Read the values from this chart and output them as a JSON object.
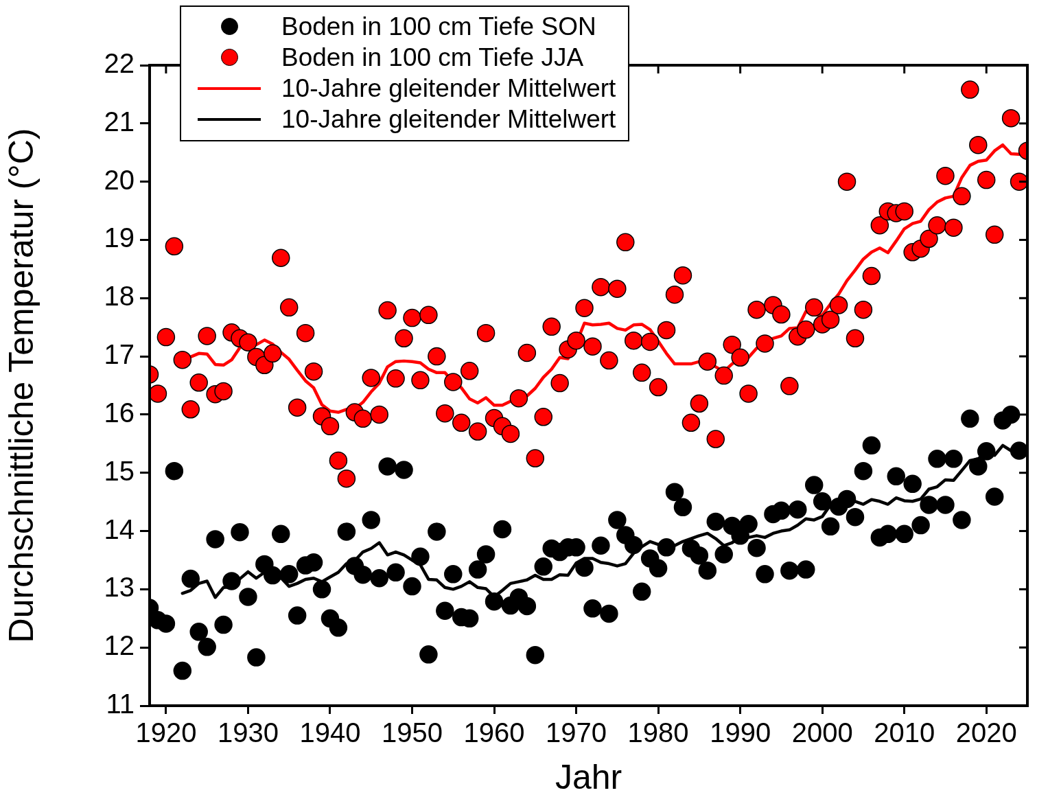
{
  "chart_data": {
    "type": "scatter",
    "xlabel": "Jahr",
    "ylabel": "Durchschnittliche Temperatur (°C)",
    "x": [
      1918,
      1919,
      1920,
      1921,
      1922,
      1923,
      1924,
      1925,
      1926,
      1927,
      1928,
      1929,
      1930,
      1931,
      1932,
      1933,
      1934,
      1935,
      1936,
      1937,
      1938,
      1939,
      1940,
      1941,
      1942,
      1943,
      1944,
      1945,
      1946,
      1947,
      1948,
      1949,
      1950,
      1951,
      1952,
      1953,
      1954,
      1955,
      1956,
      1957,
      1958,
      1959,
      1960,
      1961,
      1962,
      1963,
      1964,
      1965,
      1966,
      1967,
      1968,
      1969,
      1970,
      1971,
      1972,
      1973,
      1974,
      1975,
      1976,
      1977,
      1978,
      1979,
      1980,
      1981,
      1982,
      1983,
      1984,
      1985,
      1986,
      1987,
      1988,
      1989,
      1990,
      1991,
      1992,
      1993,
      1994,
      1995,
      1996,
      1997,
      1998,
      1999,
      2000,
      2001,
      2002,
      2003,
      2004,
      2005,
      2006,
      2007,
      2008,
      2009,
      2010,
      2011,
      2012,
      2013,
      2014,
      2015,
      2016,
      2017,
      2018,
      2019,
      2020,
      2021,
      2022,
      2023,
      2024,
      2025
    ],
    "series": [
      {
        "name": "Boden in 100 cm Tiefe SON",
        "type": "scatter",
        "color": "#000000",
        "values": [
          12.68,
          12.47,
          12.41,
          15.03,
          11.6,
          13.18,
          12.27,
          12.01,
          13.86,
          12.39,
          13.14,
          13.98,
          12.87,
          11.83,
          13.43,
          13.24,
          13.95,
          13.26,
          12.55,
          13.41,
          13.46,
          13.0,
          12.5,
          12.34,
          13.99,
          13.4,
          13.25,
          14.19,
          13.19,
          15.11,
          13.29,
          15.05,
          13.05,
          13.56,
          11.88,
          13.99,
          12.63,
          13.26,
          12.52,
          12.5,
          13.34,
          13.6,
          12.79,
          14.03,
          12.72,
          12.86,
          12.71,
          11.87,
          13.39,
          13.7,
          13.64,
          13.72,
          13.72,
          13.37,
          12.67,
          13.75,
          12.58,
          14.19,
          13.93,
          13.76,
          12.96,
          13.53,
          13.36,
          13.72,
          14.67,
          14.41,
          13.7,
          13.58,
          13.32,
          14.16,
          13.6,
          14.09,
          13.92,
          14.12,
          13.71,
          13.26,
          14.29,
          14.35,
          13.32,
          14.37,
          13.34,
          14.79,
          14.51,
          14.08,
          14.42,
          14.55,
          14.24,
          15.03,
          15.47,
          13.89,
          13.95,
          14.94,
          13.95,
          14.81,
          14.1,
          14.45,
          15.24,
          14.45,
          15.24,
          14.19,
          15.93,
          15.11,
          15.37,
          14.59,
          15.9,
          16.0,
          15.38,
          null
        ]
      },
      {
        "name": "Boden in 100 cm Tiefe JJA",
        "type": "scatter",
        "color": "#ff0000",
        "values": [
          16.69,
          16.36,
          17.33,
          18.89,
          16.94,
          16.09,
          16.55,
          17.35,
          16.35,
          16.4,
          17.41,
          17.31,
          17.24,
          16.99,
          16.85,
          17.05,
          18.69,
          17.84,
          16.12,
          17.4,
          16.74,
          15.97,
          15.8,
          15.21,
          14.9,
          16.04,
          15.93,
          16.63,
          16.0,
          17.79,
          16.62,
          17.31,
          17.66,
          16.59,
          17.71,
          17.0,
          16.02,
          16.56,
          15.86,
          16.75,
          15.71,
          17.4,
          15.94,
          15.8,
          15.67,
          16.28,
          17.06,
          15.25,
          15.96,
          17.51,
          16.54,
          17.12,
          17.27,
          17.83,
          17.17,
          18.19,
          16.93,
          18.16,
          18.96,
          17.27,
          16.72,
          17.25,
          16.47,
          17.45,
          18.06,
          18.39,
          15.86,
          16.19,
          16.91,
          15.58,
          16.67,
          17.2,
          16.98,
          16.36,
          17.8,
          17.22,
          17.88,
          17.72,
          16.49,
          17.34,
          17.46,
          17.84,
          17.55,
          17.63,
          17.88,
          20.0,
          17.31,
          17.8,
          18.38,
          19.25,
          19.49,
          19.46,
          19.49,
          18.79,
          18.85,
          19.02,
          19.25,
          20.1,
          19.21,
          19.75,
          21.58,
          20.63,
          20.03,
          19.09,
          null,
          21.09,
          20.0,
          20.53
        ]
      },
      {
        "name": "10-Jahre gleitender Mittelwert",
        "type": "line",
        "marker": "none",
        "color": "#ff0000",
        "values": [
          null,
          null,
          null,
          null,
          16.92,
          16.99,
          17.05,
          17.04,
          16.86,
          16.85,
          16.94,
          17.15,
          17.19,
          17.2,
          17.28,
          17.21,
          17.07,
          16.95,
          16.76,
          16.58,
          16.46,
          16.17,
          16.06,
          16.04,
          16.09,
          16.1,
          16.21,
          16.39,
          16.54,
          16.82,
          16.91,
          16.92,
          16.91,
          16.89,
          16.78,
          16.72,
          16.72,
          16.56,
          16.46,
          16.27,
          16.2,
          16.29,
          16.16,
          16.16,
          16.23,
          16.28,
          16.32,
          16.45,
          16.64,
          16.78,
          16.98,
          16.96,
          17.22,
          17.57,
          17.54,
          17.55,
          17.57,
          17.48,
          17.45,
          17.54,
          17.55,
          17.46,
          17.26,
          17.05,
          16.87,
          16.87,
          16.87,
          16.91,
          16.91,
          16.82,
          16.74,
          16.87,
          16.96,
          16.98,
          17.14,
          17.22,
          17.31,
          17.35,
          17.48,
          17.49,
          17.77,
          17.71,
          17.71,
          17.9,
          18.07,
          18.3,
          18.48,
          18.67,
          18.79,
          18.86,
          18.78,
          18.98,
          19.19,
          19.28,
          19.32,
          19.52,
          19.65,
          19.72,
          19.75,
          20.07,
          20.28,
          20.35,
          20.37,
          20.53,
          20.63,
          20.48,
          20.47,
          null
        ]
      },
      {
        "name": "10-Jahre gleitender Mittelwert",
        "type": "line",
        "marker": "none",
        "color": "#000000",
        "values": [
          null,
          null,
          null,
          null,
          12.93,
          12.98,
          13.1,
          13.14,
          12.86,
          13.03,
          13.04,
          13.18,
          13.3,
          13.19,
          13.29,
          13.31,
          13.2,
          13.05,
          13.1,
          13.17,
          13.19,
          13.13,
          13.21,
          13.29,
          13.44,
          13.49,
          13.64,
          13.7,
          13.8,
          13.59,
          13.64,
          13.59,
          13.5,
          13.42,
          13.17,
          13.16,
          13.03,
          13.0,
          13.05,
          13.13,
          13.03,
          13.01,
          12.87,
          12.98,
          13.1,
          13.13,
          13.16,
          13.24,
          13.17,
          13.17,
          13.25,
          13.24,
          13.45,
          13.53,
          13.53,
          13.46,
          13.44,
          13.4,
          13.44,
          13.62,
          13.73,
          13.82,
          13.77,
          13.75,
          13.75,
          13.82,
          13.87,
          13.92,
          13.96,
          13.87,
          13.75,
          13.8,
          13.89,
          13.89,
          13.92,
          13.89,
          13.96,
          14.0,
          14.02,
          14.1,
          14.21,
          14.19,
          14.25,
          14.45,
          14.54,
          14.54,
          14.51,
          14.46,
          14.54,
          14.51,
          14.46,
          14.57,
          14.52,
          14.51,
          14.55,
          14.72,
          14.76,
          14.88,
          14.87,
          15.04,
          15.21,
          15.24,
          15.36,
          15.3,
          15.47,
          15.38,
          15.38,
          null
        ]
      }
    ],
    "xlim": [
      1918,
      2025
    ],
    "xticks": [
      1920,
      1930,
      1940,
      1950,
      1960,
      1970,
      1980,
      1990,
      2000,
      2010,
      2020
    ],
    "ylim": [
      11,
      22
    ],
    "yticks": [
      11,
      12,
      13,
      14,
      15,
      16,
      17,
      18,
      19,
      20,
      21,
      22
    ],
    "grid": false,
    "legend": "top left",
    "marker": "circle",
    "line_style": "solid"
  }
}
